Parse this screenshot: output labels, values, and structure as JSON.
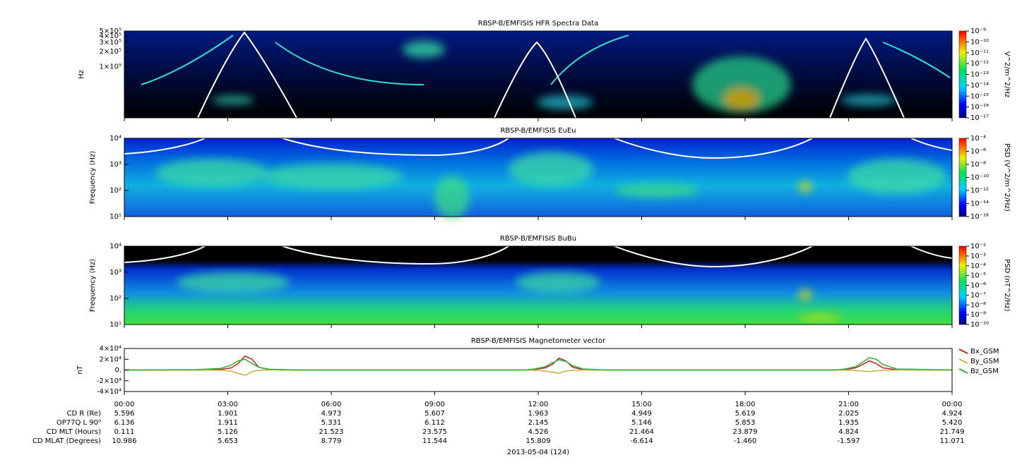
{
  "chart_data": [
    {
      "type": "spectrogram",
      "title": "RBSP-B/EMFISIS  HFR Spectra Data",
      "ylabel": "Hz",
      "yscale": "log",
      "ylim": [
        10000,
        500000
      ],
      "yticks": [
        {
          "value": 100000,
          "label": "1×10⁵"
        },
        {
          "value": 200000,
          "label": "2×10⁵"
        },
        {
          "value": 300000,
          "label": "3×10⁵"
        },
        {
          "value": 400000,
          "label": "4×10⁵"
        },
        {
          "value": 500000,
          "label": "5×10⁵"
        }
      ],
      "colorbar": {
        "label": "V^2/m^2/Hz",
        "zlim": [
          1e-17,
          1e-09
        ],
        "ticks": [
          {
            "value": 1e-09,
            "label": "10⁻⁹"
          },
          {
            "value": 1e-10,
            "label": "10⁻¹⁰"
          },
          {
            "value": 1e-11,
            "label": "10⁻¹¹"
          },
          {
            "value": 1e-12,
            "label": "10⁻¹²"
          },
          {
            "value": 1e-13,
            "label": "10⁻¹³"
          },
          {
            "value": 1e-14,
            "label": "10⁻¹⁴"
          },
          {
            "value": 1e-15,
            "label": "10⁻¹⁵"
          },
          {
            "value": 1e-16,
            "label": "10⁻¹⁶"
          },
          {
            "value": 1e-17,
            "label": "10⁻¹⁷"
          }
        ]
      }
    },
    {
      "type": "spectrogram",
      "title": "RBSP-B/EMFISIS  EuEu",
      "ylabel": "Frequency (Hz)",
      "yscale": "log",
      "ylim": [
        10,
        10000
      ],
      "yticks": [
        {
          "value": 10,
          "label": "10¹"
        },
        {
          "value": 100,
          "label": "10²"
        },
        {
          "value": 1000,
          "label": "10³"
        },
        {
          "value": 10000,
          "label": "10⁴"
        }
      ],
      "colorbar": {
        "label": "PSD (V^2/m^2/Hz)",
        "zlim": [
          1e-16,
          0.0001
        ],
        "ticks": [
          {
            "value": 0.0001,
            "label": "10⁻⁴"
          },
          {
            "value": 1e-06,
            "label": "10⁻⁶"
          },
          {
            "value": 1e-08,
            "label": "10⁻⁸"
          },
          {
            "value": 1e-10,
            "label": "10⁻¹⁰"
          },
          {
            "value": 1e-12,
            "label": "10⁻¹²"
          },
          {
            "value": 1e-14,
            "label": "10⁻¹⁴"
          },
          {
            "value": 1e-16,
            "label": "10⁻¹⁶"
          }
        ]
      }
    },
    {
      "type": "spectrogram",
      "title": "RBSP-B/EMFISIS  BuBu",
      "ylabel": "Frequency (Hz)",
      "yscale": "log",
      "ylim": [
        10,
        10000
      ],
      "yticks": [
        {
          "value": 10,
          "label": "10¹"
        },
        {
          "value": 100,
          "label": "10²"
        },
        {
          "value": 1000,
          "label": "10³"
        },
        {
          "value": 10000,
          "label": "10⁴"
        }
      ],
      "colorbar": {
        "label": "PSD (nT^2/Hz)",
        "zlim": [
          1e-10,
          0.01
        ],
        "ticks": [
          {
            "value": 0.01,
            "label": "10⁻²"
          },
          {
            "value": 0.001,
            "label": "10⁻³"
          },
          {
            "value": 0.0001,
            "label": "10⁻⁴"
          },
          {
            "value": 1e-05,
            "label": "10⁻⁵"
          },
          {
            "value": 1e-06,
            "label": "10⁻⁶"
          },
          {
            "value": 1e-07,
            "label": "10⁻⁷"
          },
          {
            "value": 1e-08,
            "label": "10⁻⁸"
          },
          {
            "value": 1e-09,
            "label": "10⁻⁹"
          },
          {
            "value": 1e-10,
            "label": "10⁻¹⁰"
          }
        ]
      }
    },
    {
      "type": "line",
      "title": "RBSP-B/EMFISIS  Magnetometer vector",
      "ylabel": "nT",
      "xlabel": "2013-05-04 (124)",
      "ylim": [
        -40000,
        40000
      ],
      "yticks": [
        {
          "value": -40000,
          "label": "-4×10⁴"
        },
        {
          "value": -20000,
          "label": "-2×10⁴"
        },
        {
          "value": 0,
          "label": "0."
        },
        {
          "value": 20000,
          "label": "2×10⁴"
        },
        {
          "value": 40000,
          "label": "4×10⁴"
        }
      ],
      "xlim": [
        0,
        24
      ],
      "xticks": [
        {
          "value": 0,
          "label": "00:00"
        },
        {
          "value": 3,
          "label": "03:00"
        },
        {
          "value": 6,
          "label": "06:00"
        },
        {
          "value": 9,
          "label": "09:00"
        },
        {
          "value": 12,
          "label": "12:00"
        },
        {
          "value": 15,
          "label": "15:00"
        },
        {
          "value": 18,
          "label": "18:00"
        },
        {
          "value": 21,
          "label": "21:00"
        },
        {
          "value": 24,
          "label": "00:00"
        }
      ],
      "x": [
        0,
        2,
        2.8,
        3.1,
        3.3,
        3.5,
        3.7,
        3.9,
        4.2,
        5,
        11.6,
        11.9,
        12.2,
        12.4,
        12.6,
        12.8,
        13.0,
        13.3,
        14,
        20.6,
        20.9,
        21.2,
        21.4,
        21.6,
        21.8,
        22.0,
        22.4,
        24
      ],
      "series": [
        {
          "name": "Bx_GSM",
          "color": "#c02020",
          "values": [
            0,
            0,
            1000,
            4000,
            12000,
            26000,
            20000,
            5000,
            1000,
            0,
            0,
            1000,
            4000,
            10000,
            22000,
            17000,
            5000,
            1000,
            0,
            0,
            1000,
            4000,
            10000,
            17000,
            12000,
            4000,
            500,
            0
          ]
        },
        {
          "name": "By_GSM",
          "color": "#c8b040",
          "values": [
            0,
            0,
            -500,
            -2000,
            -6000,
            -10000,
            -3000,
            -500,
            0,
            0,
            0,
            -500,
            -2000,
            -4000,
            -6000,
            -2000,
            -500,
            0,
            0,
            0,
            -300,
            -1000,
            -2000,
            -3000,
            -1500,
            -500,
            0,
            0
          ]
        },
        {
          "name": "Bz_GSM",
          "color": "#30b030",
          "values": [
            0,
            500,
            3000,
            9000,
            17000,
            20000,
            12000,
            5000,
            1500,
            0,
            0,
            2000,
            6000,
            13000,
            19000,
            16000,
            8000,
            2000,
            0,
            0,
            2000,
            6000,
            14000,
            23000,
            20000,
            10000,
            2000,
            0
          ]
        }
      ]
    }
  ],
  "ephemeris": {
    "rows": [
      {
        "label": "CD R (Re)",
        "values": [
          "5.596",
          "1.901",
          "4.973",
          "5.607",
          "1.963",
          "4.949",
          "5.619",
          "2.025",
          "4.924"
        ]
      },
      {
        "label": "OP77Q L 90⁰",
        "values": [
          "6.136",
          "1.911",
          "5.331",
          "6.112",
          "2.145",
          "5.146",
          "5.853",
          "1.935",
          "5.420"
        ]
      },
      {
        "label": "CD MLT (Hours)",
        "values": [
          "0.111",
          "5.126",
          "21.523",
          "23.575",
          "4.526",
          "21.464",
          "23.879",
          "4.824",
          "21.749"
        ]
      },
      {
        "label": "CD MLAT (Degrees)",
        "values": [
          "10.986",
          "5.653",
          "8.779",
          "11.544",
          "15.809",
          "-6.614",
          "-1.460",
          "-1.597",
          "11.071"
        ]
      }
    ]
  }
}
